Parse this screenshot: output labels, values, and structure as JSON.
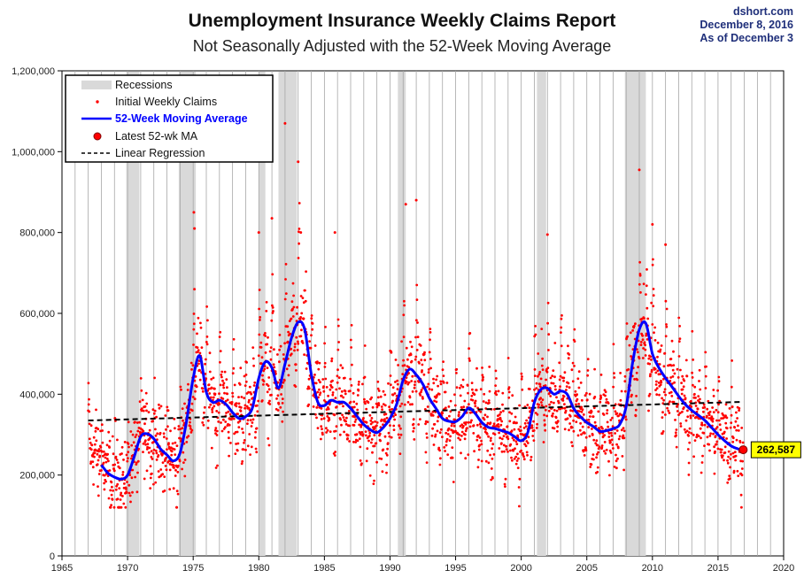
{
  "header": {
    "title": "Unemployment Insurance Weekly Claims Report",
    "subtitle": "Not Seasonally Adjusted with the 52-Week Moving Average",
    "source": "dshort.com",
    "date": "December 8, 2016",
    "as_of": "As of December 3"
  },
  "colors": {
    "claims": "#ff0000",
    "moving_average": "#0000ff",
    "recession_fill": "#d9d9d9",
    "regression": "#000000",
    "callout_fill": "#ffff00"
  },
  "chart_data": {
    "type": "scatter",
    "title": "Unemployment Insurance Weekly Claims Report",
    "subtitle": "Not Seasonally Adjusted with the 52-Week Moving Average",
    "xlim": [
      1965,
      2020
    ],
    "ylim": [
      0,
      1200000
    ],
    "x_ticks": [
      1965,
      1970,
      1975,
      1980,
      1985,
      1990,
      1995,
      2000,
      2005,
      2010,
      2015,
      2020
    ],
    "y_ticks": [
      0,
      200000,
      400000,
      600000,
      800000,
      1000000,
      1200000
    ],
    "y_tick_labels": [
      "0",
      "200,000",
      "400,000",
      "600,000",
      "800,000",
      "1,000,000",
      "1,200,000"
    ],
    "grid": {
      "vertical": true,
      "horizontal": false
    },
    "legend_position": "top-left",
    "legend": [
      "Recessions",
      "Initial Weekly Claims",
      "52-Week Moving Average",
      "Latest 52-wk MA",
      "Linear Regression"
    ],
    "recessions": [
      [
        1969.9,
        1970.9
      ],
      [
        1973.9,
        1975.2
      ],
      [
        1980.0,
        1980.5
      ],
      [
        1981.5,
        1982.9
      ],
      [
        1990.6,
        1991.2
      ],
      [
        2001.2,
        2001.9
      ],
      [
        2007.9,
        2009.5
      ]
    ],
    "moving_average": {
      "name": "52-Week Moving Average",
      "x": [
        1968.0,
        1968.5,
        1969.0,
        1969.5,
        1970.0,
        1970.5,
        1971.0,
        1971.5,
        1972.0,
        1972.5,
        1973.0,
        1973.5,
        1974.0,
        1974.5,
        1975.0,
        1975.5,
        1976.0,
        1976.5,
        1977.0,
        1977.5,
        1978.0,
        1978.5,
        1979.0,
        1979.5,
        1980.0,
        1980.5,
        1981.0,
        1981.5,
        1982.0,
        1982.5,
        1983.0,
        1983.5,
        1984.0,
        1984.5,
        1985.0,
        1985.5,
        1986.0,
        1986.5,
        1987.0,
        1987.5,
        1988.0,
        1988.5,
        1989.0,
        1989.5,
        1990.0,
        1990.5,
        1991.0,
        1991.5,
        1992.0,
        1992.5,
        1993.0,
        1993.5,
        1994.0,
        1994.5,
        1995.0,
        1995.5,
        1996.0,
        1996.5,
        1997.0,
        1997.5,
        1998.0,
        1998.5,
        1999.0,
        1999.5,
        2000.0,
        2000.5,
        2001.0,
        2001.5,
        2002.0,
        2002.5,
        2003.0,
        2003.5,
        2004.0,
        2004.5,
        2005.0,
        2005.5,
        2006.0,
        2006.5,
        2007.0,
        2007.5,
        2008.0,
        2008.5,
        2009.0,
        2009.5,
        2010.0,
        2010.5,
        2011.0,
        2011.5,
        2012.0,
        2012.5,
        2013.0,
        2013.5,
        2014.0,
        2014.5,
        2015.0,
        2015.5,
        2016.0,
        2016.5,
        2016.92
      ],
      "values": [
        225000,
        205000,
        195000,
        190000,
        200000,
        245000,
        295000,
        302000,
        290000,
        265000,
        250000,
        235000,
        255000,
        335000,
        440000,
        495000,
        405000,
        380000,
        385000,
        375000,
        355000,
        340000,
        345000,
        365000,
        440000,
        480000,
        465000,
        415000,
        475000,
        540000,
        578000,
        560000,
        450000,
        380000,
        372000,
        385000,
        380000,
        380000,
        365000,
        345000,
        325000,
        312000,
        305000,
        318000,
        340000,
        375000,
        435000,
        462000,
        448000,
        425000,
        390000,
        365000,
        340000,
        333000,
        332000,
        345000,
        366000,
        352000,
        330000,
        318000,
        315000,
        310000,
        305000,
        295000,
        285000,
        305000,
        380000,
        412000,
        415000,
        400000,
        408000,
        400000,
        365000,
        345000,
        330000,
        320000,
        308000,
        310000,
        315000,
        325000,
        370000,
        480000,
        560000,
        575000,
        500000,
        465000,
        440000,
        418000,
        395000,
        375000,
        360000,
        348000,
        335000,
        318000,
        300000,
        285000,
        272000,
        265000,
        262587
      ]
    },
    "linear_regression": {
      "name": "Linear Regression",
      "start": [
        1967,
        335000
      ],
      "end": [
        2016.92,
        381000
      ]
    },
    "latest": {
      "x": 2016.92,
      "value": 262587,
      "label": "262,587",
      "name": "Latest 52-wk MA"
    },
    "weekly_claims": {
      "name": "Initial Weekly Claims",
      "description_values": "Dense weekly scatter around the moving average, ~2,600 points 1967–2016",
      "spread": 90000,
      "notable_spikes": [
        [
          1975.05,
          850000
        ],
        [
          1975.1,
          810000
        ],
        [
          1980.0,
          800000
        ],
        [
          1981.0,
          835000
        ],
        [
          1982.0,
          1070000
        ],
        [
          1983.0,
          975000
        ],
        [
          1983.2,
          800000
        ],
        [
          1992.0,
          880000
        ],
        [
          1991.2,
          870000
        ],
        [
          2009.0,
          955000
        ],
        [
          2010.0,
          820000
        ],
        [
          2011.0,
          770000
        ],
        [
          1985.8,
          800000
        ],
        [
          2002.0,
          795000
        ]
      ]
    }
  }
}
